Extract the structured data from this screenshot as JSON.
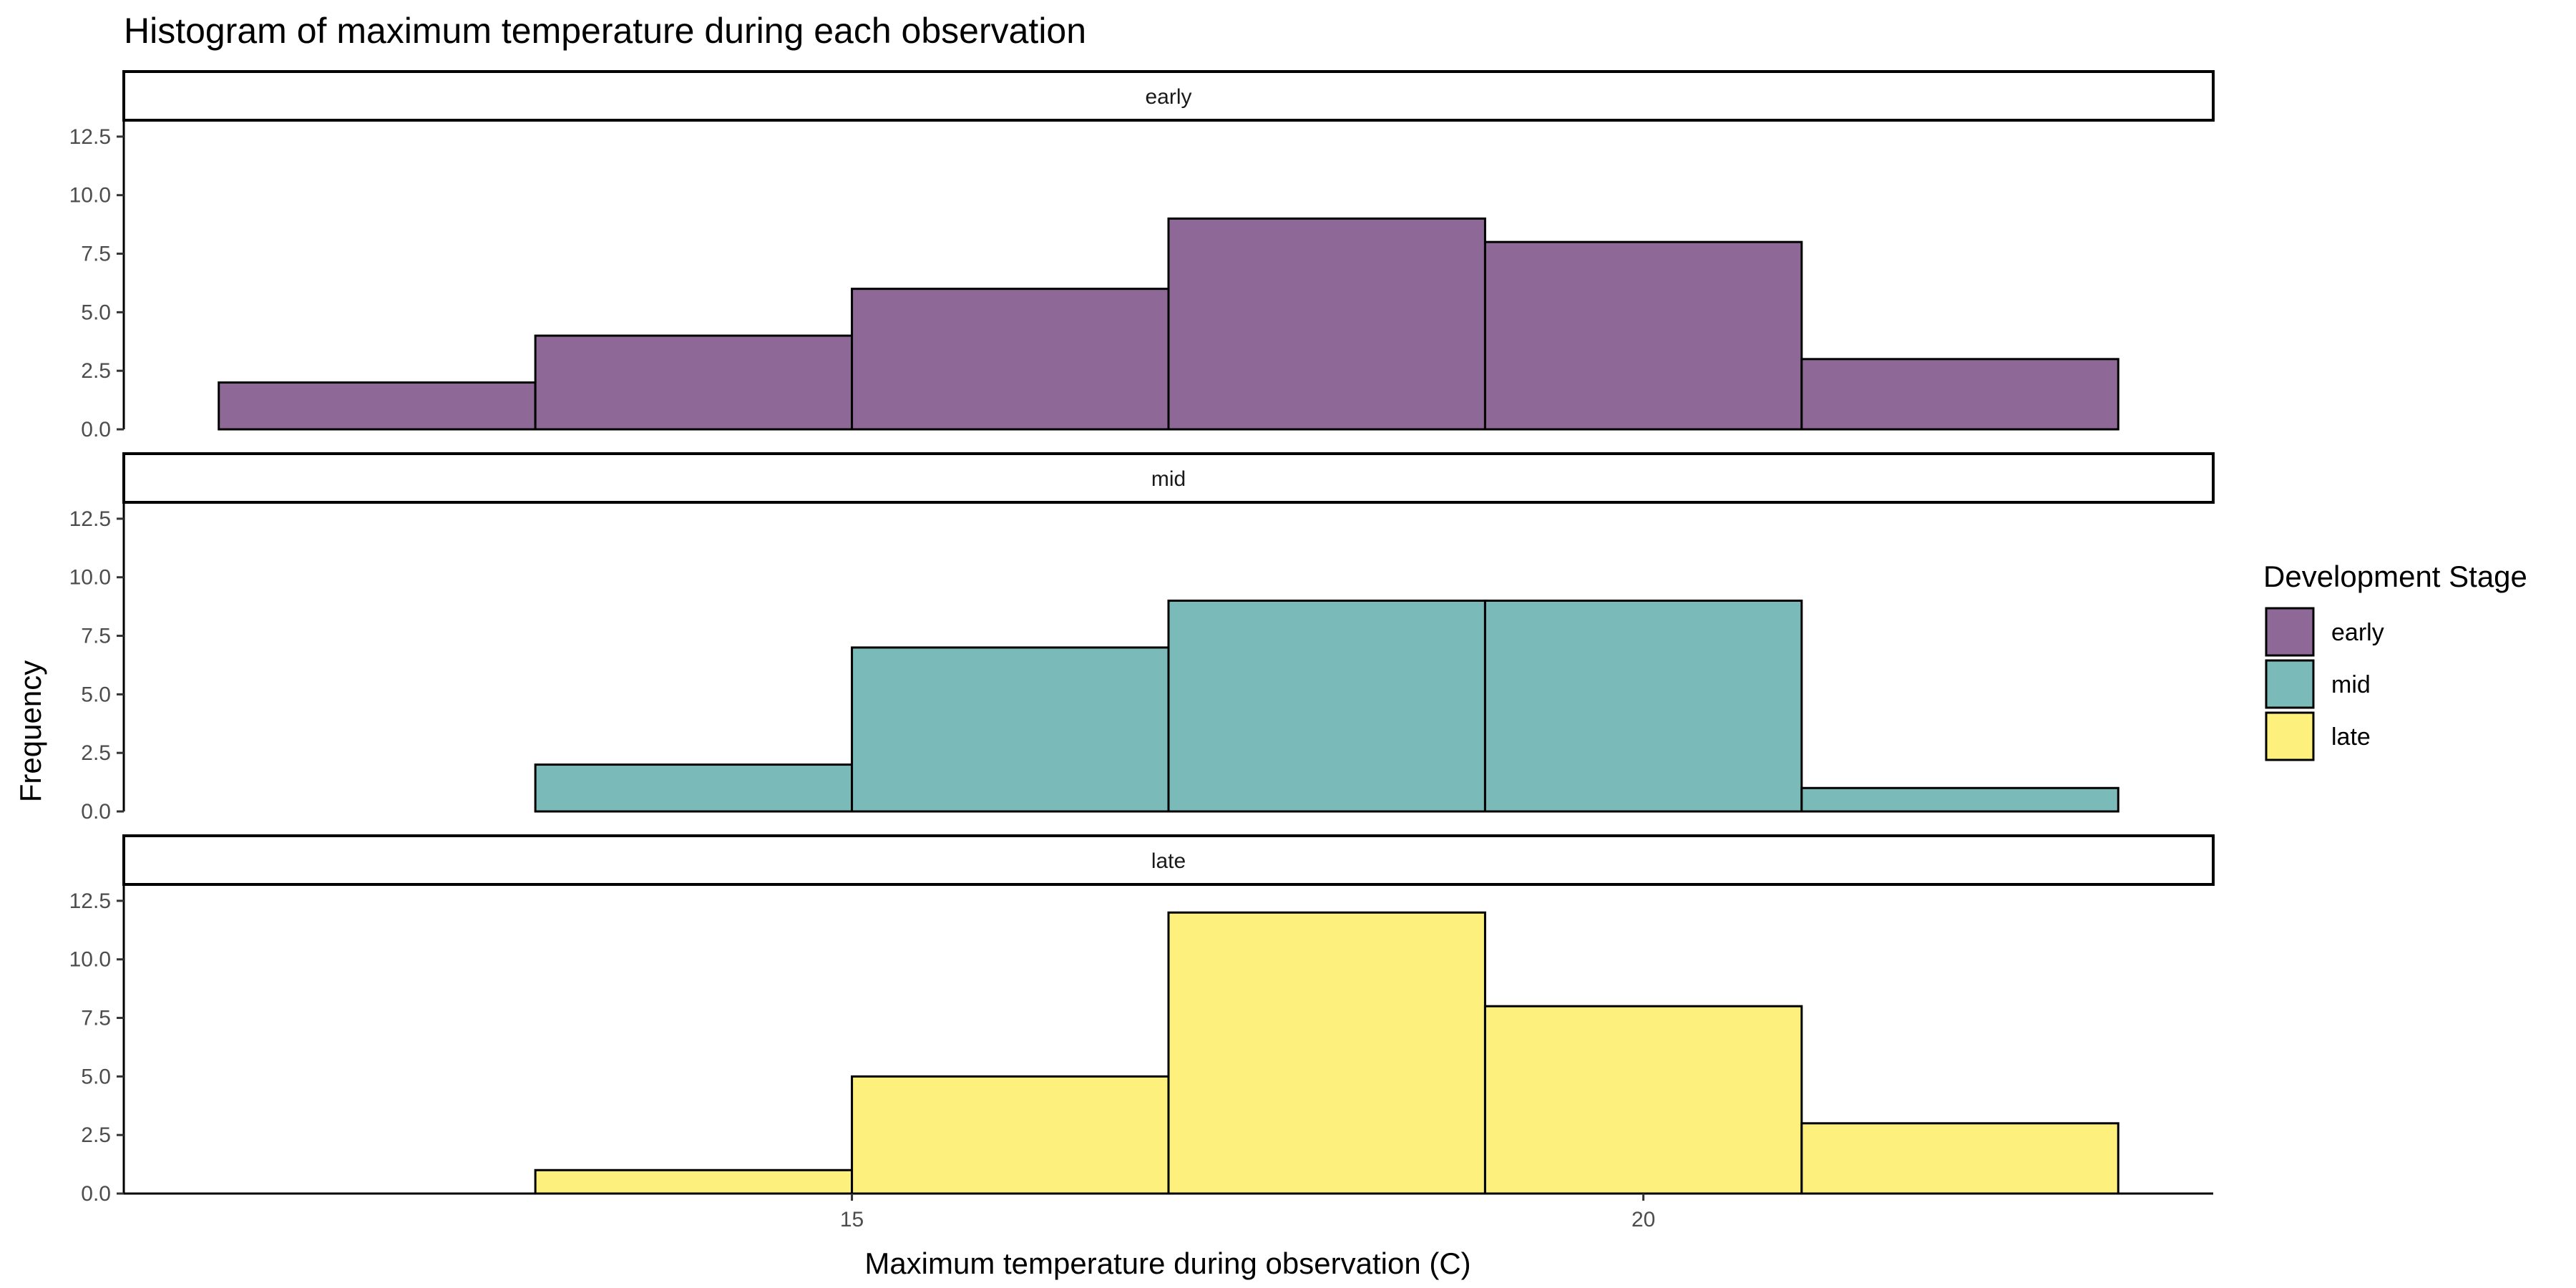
{
  "chart_data": {
    "type": "bar",
    "title": "Histogram of maximum temperature during each observation",
    "xlabel": "Maximum temperature during observation (C)",
    "ylabel": "Frequency",
    "bin_edges": [
      11,
      13,
      15,
      17,
      19,
      21,
      23
    ],
    "xlim": [
      10.4,
      23.6
    ],
    "xticks": [
      15,
      20
    ],
    "ylim": [
      0,
      13.2
    ],
    "yticks": [
      0,
      2.5,
      5,
      7.5,
      10,
      12.5
    ],
    "ytick_labels": [
      "0.0",
      "2.5",
      "5.0",
      "7.5",
      "10.0",
      "12.5"
    ],
    "grid": false,
    "legend": {
      "title": "Development Stage",
      "position": "right"
    },
    "facets": [
      {
        "label": "early",
        "color": "#8E6896",
        "values": [
          2,
          4,
          6,
          9,
          8,
          3
        ]
      },
      {
        "label": "mid",
        "color": "#7ABBBA",
        "values": [
          0,
          2,
          7,
          9,
          9,
          1
        ]
      },
      {
        "label": "late",
        "color": "#FDF07C",
        "values": [
          0,
          1,
          5,
          12,
          8,
          3
        ]
      }
    ]
  }
}
